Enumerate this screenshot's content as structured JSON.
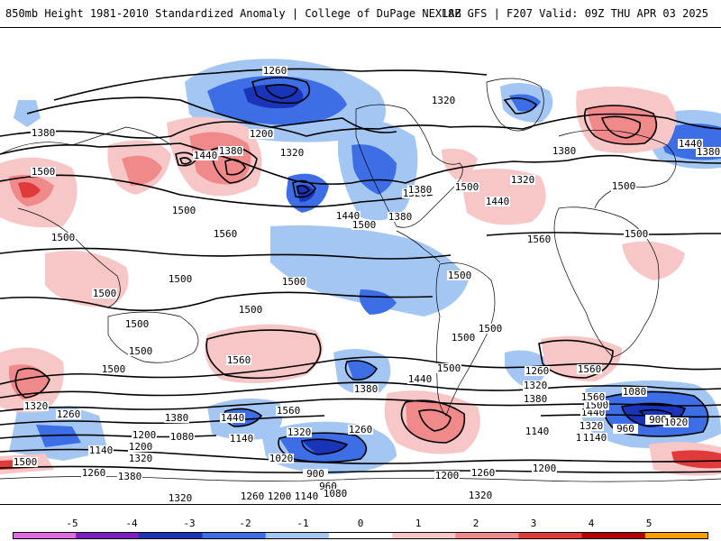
{
  "header": {
    "title": "850mb Height 1981-2010 Standardized Anomaly | College of DuPage NEXLAB",
    "run_info": "18Z GFS | F207 Valid: 09Z THU APR 03 2025"
  },
  "colorbar": {
    "ticks": [
      "-5",
      "-4",
      "-3",
      "-2",
      "-1",
      "0",
      "1",
      "2",
      "3",
      "4",
      "5"
    ],
    "colors": [
      "#e06be0",
      "#7a1fc4",
      "#1a34b8",
      "#3d6ee6",
      "#a4c6f2",
      "#ffffff",
      "#f7c6c6",
      "#f08a8a",
      "#e03a3a",
      "#b30000",
      "#f5a000"
    ]
  },
  "contour_labels": {
    "l1": "1260",
    "l2": "1320",
    "l3": "1380",
    "l4": "1200",
    "l5": "1320",
    "l6": "1440",
    "l7": "1380",
    "l8": "1500",
    "l9": "1500",
    "l10": "1500",
    "l11": "1560",
    "l12": "1440",
    "l13": "1500",
    "l14": "1320",
    "l15": "1380",
    "l16": "1500",
    "l17": "1440",
    "l18": "1560",
    "l19": "1320",
    "l20": "1380",
    "l21": "1440",
    "l22": "1380",
    "l23": "1500",
    "l24": "1500",
    "l25": "1500",
    "l26": "1500",
    "l27": "1500",
    "l28": "1500",
    "l29": "1500",
    "l30": "1500",
    "l31": "1500",
    "l32": "1500",
    "l33": "1560",
    "l34": "1560",
    "l35": "1440",
    "l36": "1380",
    "l37": "1500",
    "l38": "1440",
    "l39": "1320",
    "l40": "1260",
    "l41": "1380",
    "l42": "1260",
    "l43": "1200",
    "l44": "1080",
    "l45": "1140",
    "l46": "1200",
    "l47": "1320",
    "l48": "1260",
    "l49": "1380",
    "l50": "1140",
    "l51": "1020",
    "l52": "900",
    "l53": "960",
    "l54": "1080",
    "l55": "1140",
    "l56": "1200",
    "l57": "1260",
    "l58": "1320",
    "l59": "1200",
    "l60": "1140",
    "l61": "1320",
    "l62": "1380",
    "l63": "1440",
    "l64": "1500",
    "l65": "1560",
    "l66": "1320",
    "l67": "1260",
    "l68": "1200",
    "l69": "1140",
    "l70": "1080",
    "l71": "900",
    "l72": "960",
    "l73": "1020",
    "l74": "1500",
    "l75": "1320",
    "l76": "1260",
    "l77": "1200",
    "l78": "1140",
    "l79": "1500",
    "l80": "1500",
    "l81": "1560",
    "l82": "1380",
    "l83": "1380",
    "l84": "1320"
  }
}
